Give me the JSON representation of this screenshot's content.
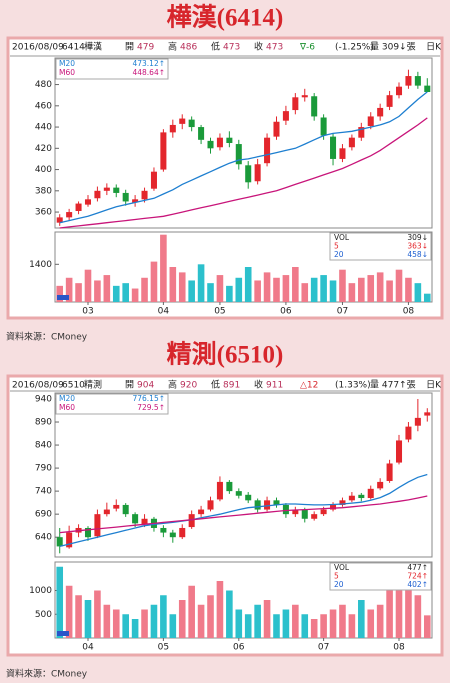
{
  "chart_data": [
    {
      "type": "candlestick",
      "title": "樺漢(6414)",
      "date": "2016/08/09",
      "code": "6414",
      "name": "樺漢",
      "quote": [
        {
          "label": "開",
          "value": 479
        },
        {
          "label": "高",
          "value": 486
        },
        {
          "label": "低",
          "value": 473
        },
        {
          "label": "收",
          "value": 473
        }
      ],
      "change": "∇-6",
      "change_color": "#1a8f2e",
      "percent": "(-1.25%)",
      "volume_text": "量 309↓張",
      "period": "日K",
      "up_color": "#e3262c",
      "down_color": "#1a9a3a",
      "vol_up_color": "#f07a8a",
      "vol_down_color": "#2cc0cc",
      "categories": [
        null,
        null,
        null,
        "03",
        null,
        null,
        null,
        null,
        null,
        null,
        null,
        "04",
        null,
        null,
        null,
        null,
        null,
        "05",
        null,
        null,
        null,
        null,
        null,
        null,
        "06",
        null,
        null,
        null,
        null,
        null,
        "07",
        null,
        null,
        null,
        null,
        null,
        null,
        "08",
        null,
        null
      ],
      "candles": [
        [
          350,
          358,
          347,
          355
        ],
        [
          355,
          363,
          352,
          360
        ],
        [
          361,
          370,
          358,
          368
        ],
        [
          367,
          376,
          365,
          372
        ],
        [
          373,
          384,
          370,
          380
        ],
        [
          380,
          387,
          376,
          383
        ],
        [
          383,
          386,
          374,
          378
        ],
        [
          378,
          381,
          366,
          370
        ],
        [
          369,
          376,
          365,
          372
        ],
        [
          372,
          383,
          369,
          380
        ],
        [
          382,
          402,
          380,
          398
        ],
        [
          400,
          438,
          398,
          435
        ],
        [
          435,
          447,
          430,
          442
        ],
        [
          443,
          452,
          438,
          448
        ],
        [
          447,
          450,
          436,
          440
        ],
        [
          440,
          442,
          424,
          428
        ],
        [
          427,
          430,
          415,
          420
        ],
        [
          421,
          434,
          418,
          430
        ],
        [
          430,
          436,
          421,
          425
        ],
        [
          424,
          428,
          400,
          405
        ],
        [
          404,
          408,
          382,
          388
        ],
        [
          389,
          410,
          386,
          405
        ],
        [
          406,
          434,
          403,
          430
        ],
        [
          431,
          450,
          428,
          445
        ],
        [
          446,
          460,
          442,
          455
        ],
        [
          456,
          472,
          452,
          468
        ],
        [
          468,
          476,
          464,
          470
        ],
        [
          469,
          472,
          446,
          450
        ],
        [
          449,
          452,
          428,
          432
        ],
        [
          431,
          434,
          404,
          410
        ],
        [
          410,
          424,
          407,
          420
        ],
        [
          421,
          433,
          418,
          430
        ],
        [
          430,
          444,
          427,
          440
        ],
        [
          441,
          454,
          438,
          450
        ],
        [
          450,
          462,
          446,
          458
        ],
        [
          459,
          474,
          456,
          470
        ],
        [
          470,
          482,
          467,
          478
        ],
        [
          479,
          494,
          476,
          488
        ],
        [
          488,
          492,
          476,
          479
        ],
        [
          479,
          486,
          473,
          473
        ]
      ],
      "series": [
        {
          "name": "M20",
          "label": "473.12↑",
          "color": "#1e7fd0",
          "values": [
            350,
            352,
            354,
            356,
            359,
            362,
            365,
            367,
            369,
            371,
            373,
            377,
            381,
            386,
            390,
            394,
            398,
            402,
            406,
            409,
            410,
            412,
            414,
            416,
            418,
            420,
            424,
            428,
            432,
            434,
            435,
            436,
            438,
            440,
            442,
            445,
            450,
            458,
            466,
            473.12
          ]
        },
        {
          "name": "M60",
          "label": "448.64↑",
          "color": "#c8157a",
          "values": [
            345,
            346,
            347,
            348,
            349,
            350,
            351,
            352,
            353,
            354,
            355,
            356,
            358,
            360,
            362,
            364,
            366,
            368,
            370,
            372,
            374,
            376,
            378,
            380,
            383,
            386,
            389,
            392,
            395,
            398,
            401,
            405,
            409,
            413,
            418,
            424,
            430,
            436,
            442,
            448.64
          ]
        }
      ],
      "ylim": [
        345,
        505
      ],
      "yticks": [
        360,
        380,
        400,
        420,
        440,
        460,
        480
      ],
      "volumes": [
        600,
        900,
        700,
        1200,
        800,
        1000,
        600,
        700,
        500,
        900,
        1500,
        2500,
        1300,
        1100,
        800,
        1400,
        700,
        1000,
        600,
        900,
        1300,
        800,
        1100,
        900,
        1000,
        1300,
        700,
        900,
        1000,
        800,
        1200,
        700,
        900,
        1000,
        1100,
        800,
        1200,
        900,
        700,
        309
      ],
      "volume_ylim": [
        0,
        2600
      ],
      "volume_yticks": [
        1400
      ],
      "volume_legend": [
        {
          "name": "VOL",
          "label": "309↓",
          "color": "#222222"
        },
        {
          "name": "5",
          "label": "363↓",
          "color": "#e3262c"
        },
        {
          "name": "20",
          "label": "458↓",
          "color": "#1e5fd0"
        }
      ],
      "source": "資料來源：CMoney"
    },
    {
      "type": "candlestick",
      "title": "精測(6510)",
      "date": "2016/08/09",
      "code": "6510",
      "name": "精測",
      "quote": [
        {
          "label": "開",
          "value": 904
        },
        {
          "label": "高",
          "value": 920
        },
        {
          "label": "低",
          "value": 891
        },
        {
          "label": "收",
          "value": 911
        }
      ],
      "change": "△12",
      "change_color": "#d7262c",
      "percent": "(1.33%)",
      "volume_text": "量 477↑張",
      "period": "日K",
      "up_color": "#e3262c",
      "down_color": "#1a9a3a",
      "vol_up_color": "#f07a8a",
      "vol_down_color": "#2cc0cc",
      "categories": [
        null,
        null,
        null,
        "04",
        null,
        null,
        null,
        null,
        null,
        null,
        null,
        "05",
        null,
        null,
        null,
        null,
        null,
        null,
        null,
        "06",
        null,
        null,
        null,
        null,
        null,
        null,
        null,
        null,
        "07",
        null,
        null,
        null,
        null,
        null,
        null,
        null,
        "08",
        null,
        null,
        null
      ],
      "candles": [
        [
          640,
          660,
          605,
          620
        ],
        [
          618,
          665,
          615,
          650
        ],
        [
          650,
          668,
          640,
          660
        ],
        [
          660,
          664,
          632,
          640
        ],
        [
          642,
          700,
          638,
          690
        ],
        [
          690,
          715,
          685,
          700
        ],
        [
          702,
          722,
          696,
          710
        ],
        [
          710,
          714,
          684,
          690
        ],
        [
          690,
          694,
          662,
          670
        ],
        [
          668,
          690,
          662,
          680
        ],
        [
          680,
          684,
          652,
          660
        ],
        [
          660,
          666,
          640,
          650
        ],
        [
          650,
          656,
          628,
          640
        ],
        [
          640,
          668,
          636,
          660
        ],
        [
          662,
          698,
          658,
          690
        ],
        [
          690,
          708,
          684,
          700
        ],
        [
          700,
          728,
          696,
          720
        ],
        [
          722,
          772,
          718,
          760
        ],
        [
          760,
          764,
          734,
          740
        ],
        [
          740,
          746,
          724,
          730
        ],
        [
          732,
          738,
          714,
          720
        ],
        [
          720,
          724,
          694,
          700
        ],
        [
          700,
          728,
          696,
          720
        ],
        [
          720,
          726,
          704,
          710
        ],
        [
          710,
          714,
          682,
          690
        ],
        [
          690,
          706,
          684,
          700
        ],
        [
          700,
          704,
          672,
          680
        ],
        [
          680,
          696,
          676,
          690
        ],
        [
          690,
          706,
          686,
          700
        ],
        [
          700,
          716,
          696,
          710
        ],
        [
          710,
          726,
          706,
          720
        ],
        [
          720,
          738,
          716,
          730
        ],
        [
          732,
          736,
          718,
          725
        ],
        [
          725,
          752,
          722,
          745
        ],
        [
          746,
          768,
          742,
          760
        ],
        [
          762,
          808,
          758,
          800
        ],
        [
          802,
          862,
          798,
          850
        ],
        [
          852,
          890,
          846,
          880
        ],
        [
          882,
          940,
          870,
          899
        ],
        [
          904,
          920,
          891,
          911
        ]
      ],
      "series": [
        {
          "name": "M20",
          "label": "776.15↑",
          "color": "#1e7fd0",
          "values": [
            620,
            625,
            630,
            635,
            640,
            645,
            650,
            655,
            660,
            665,
            668,
            670,
            672,
            675,
            678,
            682,
            686,
            690,
            695,
            700,
            704,
            706,
            708,
            710,
            712,
            712,
            711,
            710,
            710,
            711,
            712,
            714,
            716,
            720,
            726,
            735,
            748,
            760,
            770,
            776.15
          ]
        },
        {
          "name": "M60",
          "label": "729.5↑",
          "color": "#c8157a",
          "values": [
            650,
            652,
            654,
            656,
            658,
            660,
            662,
            664,
            666,
            668,
            670,
            672,
            674,
            676,
            678,
            680,
            682,
            684,
            686,
            688,
            690,
            692,
            694,
            696,
            698,
            699,
            700,
            701,
            702,
            703,
            704,
            706,
            708,
            710,
            712,
            715,
            718,
            721,
            725,
            729.5
          ]
        }
      ],
      "ylim": [
        597,
        953
      ],
      "yticks": [
        640,
        690,
        740,
        790,
        840,
        890,
        940
      ],
      "volumes": [
        1500,
        1100,
        900,
        800,
        1000,
        700,
        600,
        500,
        400,
        600,
        700,
        900,
        500,
        800,
        1100,
        700,
        900,
        1200,
        1000,
        600,
        500,
        700,
        800,
        500,
        600,
        700,
        500,
        400,
        500,
        600,
        700,
        500,
        800,
        600,
        700,
        1200,
        1300,
        1100,
        900,
        477
      ],
      "volume_ylim": [
        0,
        1600
      ],
      "volume_yticks": [
        500,
        1000
      ],
      "volume_legend": [
        {
          "name": "VOL",
          "label": "477↑",
          "color": "#222222"
        },
        {
          "name": "5",
          "label": "724↑",
          "color": "#e3262c"
        },
        {
          "name": "20",
          "label": "402↑",
          "color": "#1e5fd0"
        }
      ],
      "source": "資料來源：CMoney"
    }
  ]
}
